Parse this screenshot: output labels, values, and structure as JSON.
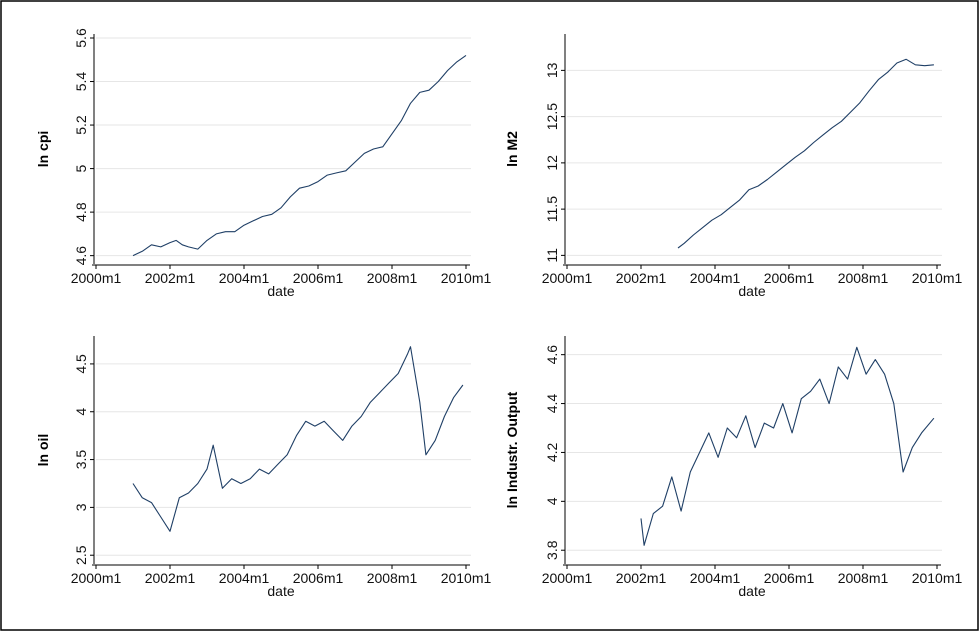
{
  "chart_data": [
    {
      "type": "line",
      "ylabel": "ln cpi",
      "xlabel": "date",
      "xticks": [
        "2000m1",
        "2002m1",
        "2004m1",
        "2006m1",
        "2008m1",
        "2010m1"
      ],
      "yticks": [
        "4.6",
        "4.8",
        "5",
        "5.2",
        "5.4",
        "5.6"
      ],
      "ylim": [
        4.58,
        5.6
      ],
      "grid": true,
      "series_color": "#1f3f66",
      "x": [
        "2001m1",
        "2001m4",
        "2001m7",
        "2001m10",
        "2002m1",
        "2002m3",
        "2002m5",
        "2002m7",
        "2002m10",
        "2003m1",
        "2003m4",
        "2003m7",
        "2003m10",
        "2004m1",
        "2004m4",
        "2004m7",
        "2004m10",
        "2005m1",
        "2005m4",
        "2005m7",
        "2005m10",
        "2006m1",
        "2006m4",
        "2006m7",
        "2006m10",
        "2007m1",
        "2007m4",
        "2007m7",
        "2007m10",
        "2008m1",
        "2008m4",
        "2008m7",
        "2008m10",
        "2009m1",
        "2009m4",
        "2009m7",
        "2009m10",
        "2010m1"
      ],
      "y": [
        4.6,
        4.62,
        4.65,
        4.64,
        4.66,
        4.67,
        4.65,
        4.64,
        4.63,
        4.67,
        4.7,
        4.71,
        4.71,
        4.74,
        4.76,
        4.78,
        4.79,
        4.82,
        4.87,
        4.91,
        4.92,
        4.94,
        4.97,
        4.98,
        4.99,
        5.03,
        5.07,
        5.09,
        5.1,
        5.16,
        5.22,
        5.3,
        5.35,
        5.36,
        5.4,
        5.45,
        5.49,
        5.52
      ]
    },
    {
      "type": "line",
      "ylabel": "ln M2",
      "xlabel": "date",
      "xticks": [
        "2000m1",
        "2002m1",
        "2004m1",
        "2006m1",
        "2008m1",
        "2010m1"
      ],
      "yticks": [
        "11",
        "11.5",
        "12",
        "12.5",
        "13"
      ],
      "ylim": [
        10.95,
        13.35
      ],
      "grid": true,
      "series_color": "#1f3f66",
      "x": [
        "2003m1",
        "2003m3",
        "2003m6",
        "2003m9",
        "2003m12",
        "2004m3",
        "2004m6",
        "2004m9",
        "2004m12",
        "2005m3",
        "2005m6",
        "2005m9",
        "2005m12",
        "2006m3",
        "2006m6",
        "2006m9",
        "2006m12",
        "2007m3",
        "2007m6",
        "2007m9",
        "2007m12",
        "2008m3",
        "2008m6",
        "2008m9",
        "2008m12",
        "2009m3",
        "2009m6",
        "2009m9",
        "2009m12"
      ],
      "y": [
        11.08,
        11.13,
        11.22,
        11.3,
        11.38,
        11.44,
        11.52,
        11.6,
        11.71,
        11.75,
        11.82,
        11.9,
        11.98,
        12.06,
        12.13,
        12.22,
        12.3,
        12.38,
        12.45,
        12.55,
        12.65,
        12.78,
        12.9,
        12.98,
        13.08,
        13.12,
        13.06,
        13.05,
        13.06
      ]
    },
    {
      "type": "line",
      "ylabel": "ln oil",
      "xlabel": "date",
      "xticks": [
        "2000m1",
        "2002m1",
        "2004m1",
        "2006m1",
        "2008m1",
        "2010m1"
      ],
      "yticks": [
        "2.5",
        "3",
        "3.5",
        "4",
        "4.5"
      ],
      "ylim": [
        2.45,
        4.75
      ],
      "grid": true,
      "series_color": "#1f3f66",
      "x": [
        "2001m1",
        "2001m4",
        "2001m7",
        "2001m10",
        "2002m1",
        "2002m4",
        "2002m7",
        "2002m10",
        "2003m1",
        "2003m3",
        "2003m6",
        "2003m9",
        "2003m12",
        "2004m3",
        "2004m6",
        "2004m9",
        "2004m12",
        "2005m3",
        "2005m6",
        "2005m9",
        "2005m12",
        "2006m3",
        "2006m6",
        "2006m9",
        "2006m12",
        "2007m3",
        "2007m6",
        "2007m9",
        "2007m12",
        "2008m3",
        "2008m6",
        "2008m7",
        "2008m10",
        "2008m12",
        "2009m3",
        "2009m6",
        "2009m9",
        "2009m12"
      ],
      "y": [
        3.25,
        3.1,
        3.05,
        2.9,
        2.75,
        3.1,
        3.15,
        3.25,
        3.4,
        3.65,
        3.2,
        3.3,
        3.25,
        3.3,
        3.4,
        3.35,
        3.45,
        3.55,
        3.75,
        3.9,
        3.85,
        3.9,
        3.8,
        3.7,
        3.85,
        3.95,
        4.1,
        4.2,
        4.3,
        4.4,
        4.6,
        4.68,
        4.1,
        3.55,
        3.7,
        3.95,
        4.15,
        4.28
      ]
    },
    {
      "type": "line",
      "ylabel": "ln Industr. Output",
      "xlabel": "date",
      "xticks": [
        "2000m1",
        "2002m1",
        "2004m1",
        "2006m1",
        "2008m1",
        "2010m1"
      ],
      "yticks": [
        "3.8",
        "4",
        "4.2",
        "4.4",
        "4.6"
      ],
      "ylim": [
        3.76,
        4.66
      ],
      "grid": true,
      "series_color": "#1f3f66",
      "x": [
        "2002m1",
        "2002m2",
        "2002m5",
        "2002m8",
        "2002m11",
        "2003m2",
        "2003m5",
        "2003m8",
        "2003m11",
        "2004m2",
        "2004m5",
        "2004m8",
        "2004m11",
        "2005m2",
        "2005m5",
        "2005m8",
        "2005m11",
        "2006m2",
        "2006m5",
        "2006m8",
        "2006m11",
        "2007m2",
        "2007m5",
        "2007m8",
        "2007m11",
        "2008m2",
        "2008m5",
        "2008m8",
        "2008m11",
        "2009m2",
        "2009m5",
        "2009m8",
        "2009m12"
      ],
      "y": [
        3.93,
        3.82,
        3.95,
        3.98,
        4.1,
        3.96,
        4.12,
        4.2,
        4.28,
        4.18,
        4.3,
        4.26,
        4.35,
        4.22,
        4.32,
        4.3,
        4.4,
        4.28,
        4.42,
        4.45,
        4.5,
        4.4,
        4.55,
        4.5,
        4.63,
        4.52,
        4.58,
        4.52,
        4.4,
        4.12,
        4.22,
        4.28,
        4.34
      ]
    }
  ]
}
